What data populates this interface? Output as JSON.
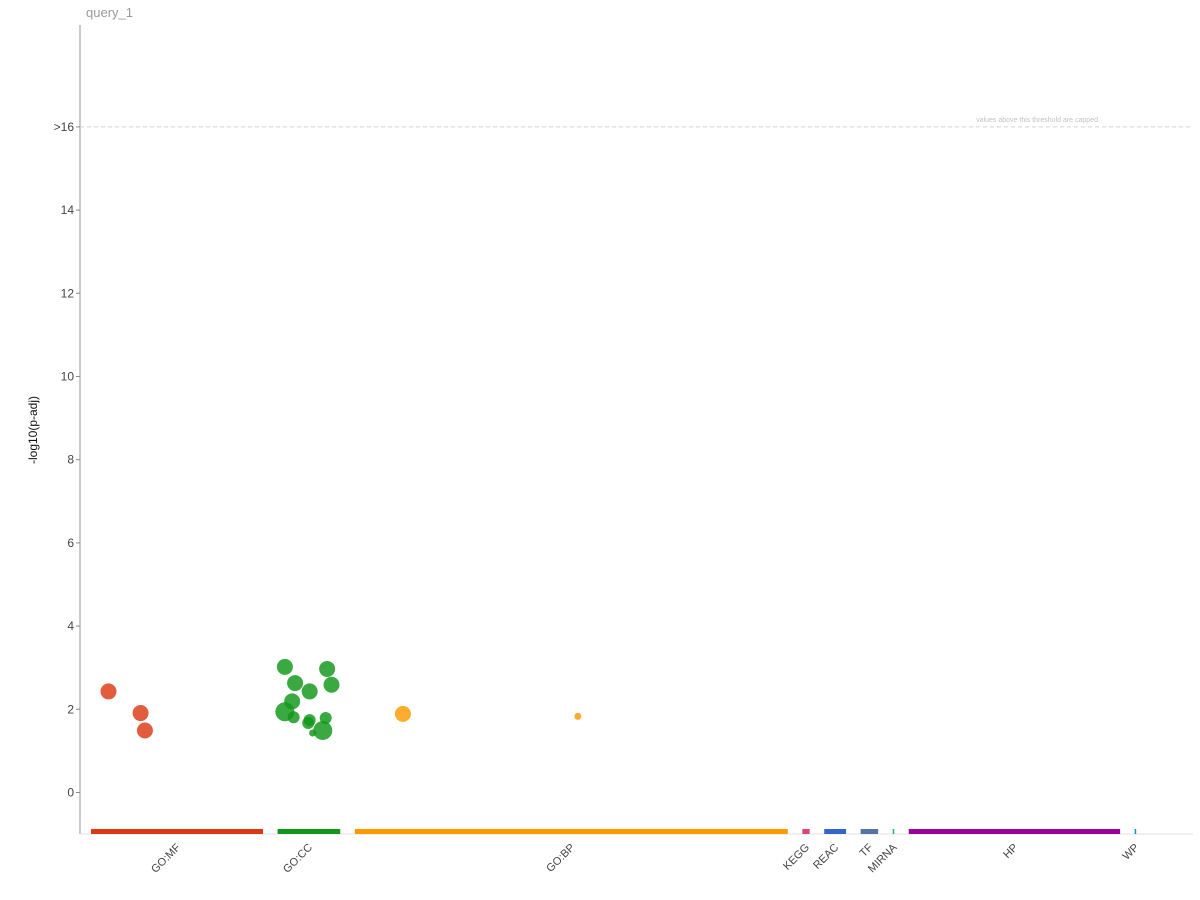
{
  "chart_data": {
    "type": "scatter",
    "title": "query_1",
    "ylabel": "-log10(p-adj)",
    "xlabel": "",
    "ylim": [
      -1,
      19
    ],
    "y_ticks": [
      {
        "value": 0,
        "label": "0"
      },
      {
        "value": 2,
        "label": "2"
      },
      {
        "value": 4,
        "label": "4"
      },
      {
        "value": 6,
        "label": "6"
      },
      {
        "value": 8,
        "label": "8"
      },
      {
        "value": 10,
        "label": "10"
      },
      {
        "value": 12,
        "label": "12"
      },
      {
        "value": 14,
        "label": "14"
      },
      {
        "value": 16,
        "label": ">16"
      }
    ],
    "threshold": {
      "value": 16,
      "note": "values above this threshold are capped"
    },
    "grid": false,
    "legend": "none",
    "sources": [
      {
        "name": "GO:MF",
        "color": "#dc3912",
        "start": 0,
        "end": 11.8
      },
      {
        "name": "GO:CC",
        "color": "#109618",
        "start": 12.8,
        "end": 17.1
      },
      {
        "name": "GO:BP",
        "color": "#ff9900",
        "start": 18.1,
        "end": 47.8
      },
      {
        "name": "KEGG",
        "color": "#dd4477",
        "start": 48.8,
        "end": 49.3
      },
      {
        "name": "REAC",
        "color": "#3366cc",
        "start": 50.3,
        "end": 51.8
      },
      {
        "name": "TF",
        "color": "#5574a6",
        "start": 52.8,
        "end": 54.0
      },
      {
        "name": "MIRNA",
        "color": "#22aa99",
        "start": 55.0,
        "end": 55.1
      },
      {
        "name": "HP",
        "color": "#990099",
        "start": 56.1,
        "end": 70.6
      },
      {
        "name": "WP",
        "color": "#0099c6",
        "start": 71.6,
        "end": 71.7
      }
    ],
    "points": [
      {
        "source": "GO:MF",
        "x": 1.2,
        "y": 2.43,
        "size": 3
      },
      {
        "source": "GO:MF",
        "x": 3.4,
        "y": 1.91,
        "size": 3
      },
      {
        "source": "GO:MF",
        "x": 3.7,
        "y": 1.49,
        "size": 3
      },
      {
        "source": "GO:CC",
        "x": 13.3,
        "y": 3.02,
        "size": 3
      },
      {
        "source": "GO:CC",
        "x": 14.0,
        "y": 2.63,
        "size": 3
      },
      {
        "source": "GO:CC",
        "x": 15.0,
        "y": 2.43,
        "size": 3
      },
      {
        "source": "GO:CC",
        "x": 13.8,
        "y": 2.19,
        "size": 3
      },
      {
        "source": "GO:CC",
        "x": 13.3,
        "y": 1.94,
        "size": 4
      },
      {
        "source": "GO:CC",
        "x": 13.9,
        "y": 1.81,
        "size": 2
      },
      {
        "source": "GO:CC",
        "x": 15.0,
        "y": 1.74,
        "size": 2
      },
      {
        "source": "GO:CC",
        "x": 14.9,
        "y": 1.67,
        "size": 2
      },
      {
        "source": "GO:CC",
        "x": 15.2,
        "y": 1.43,
        "size": 1
      },
      {
        "source": "GO:CC",
        "x": 16.2,
        "y": 2.97,
        "size": 3
      },
      {
        "source": "GO:CC",
        "x": 16.5,
        "y": 2.59,
        "size": 3
      },
      {
        "source": "GO:CC",
        "x": 16.1,
        "y": 1.79,
        "size": 2
      },
      {
        "source": "GO:CC",
        "x": 15.9,
        "y": 1.49,
        "size": 4
      },
      {
        "source": "GO:BP",
        "x": 21.4,
        "y": 1.89,
        "size": 3
      },
      {
        "source": "GO:BP",
        "x": 33.4,
        "y": 1.83,
        "size": 1
      }
    ]
  }
}
